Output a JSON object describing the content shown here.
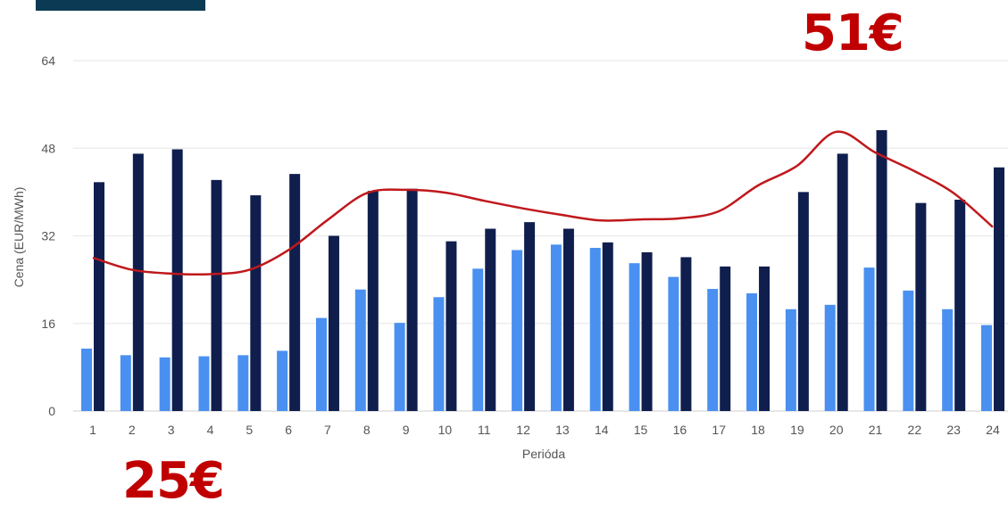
{
  "colors": {
    "corner_bar": "#0b3a55",
    "series_light": "#4a90f0",
    "series_dark": "#0f1e4d",
    "line": "#c0181c",
    "annotation": "#c00000",
    "grid": "#e6e6e6"
  },
  "annotations": {
    "max_label": "51€",
    "min_label": "25€"
  },
  "chart_data": {
    "type": "bar",
    "title": "",
    "xlabel": "Perióda",
    "ylabel": "Cena (EUR/MWh)",
    "ylim": [
      0,
      64
    ],
    "yticks": [
      "0",
      "16",
      "32",
      "48",
      "64"
    ],
    "ytick_values": [
      0,
      16,
      32,
      48,
      64
    ],
    "grid": true,
    "categories": [
      "1",
      "2",
      "3",
      "4",
      "5",
      "6",
      "7",
      "8",
      "9",
      "10",
      "11",
      "12",
      "13",
      "14",
      "15",
      "16",
      "17",
      "18",
      "19",
      "20",
      "21",
      "22",
      "23",
      "24"
    ],
    "series": [
      {
        "type": "bar",
        "color_key": "series_light",
        "values": [
          11.4,
          10.2,
          9.8,
          10.0,
          10.2,
          11.0,
          17.0,
          22.2,
          16.1,
          20.8,
          26.0,
          29.4,
          30.4,
          29.8,
          27.0,
          24.5,
          22.3,
          21.5,
          18.6,
          19.4,
          26.2,
          22.0,
          18.6,
          15.7
        ]
      },
      {
        "type": "bar",
        "color_key": "series_dark",
        "values": [
          41.8,
          47.0,
          47.8,
          42.2,
          39.4,
          43.3,
          32.0,
          40.2,
          40.6,
          31.0,
          33.3,
          34.5,
          33.3,
          30.8,
          29.0,
          28.1,
          26.4,
          26.4,
          40.0,
          47.0,
          51.3,
          38.0,
          38.6,
          44.5
        ]
      },
      {
        "type": "line",
        "color_key": "line",
        "values": [
          28.0,
          25.8,
          25.1,
          25.0,
          25.8,
          29.4,
          34.9,
          39.8,
          40.4,
          39.9,
          38.4,
          37.0,
          35.8,
          34.8,
          35.0,
          35.2,
          36.5,
          41.2,
          44.8,
          51.0,
          47.2,
          43.8,
          39.8,
          33.6
        ]
      }
    ]
  }
}
